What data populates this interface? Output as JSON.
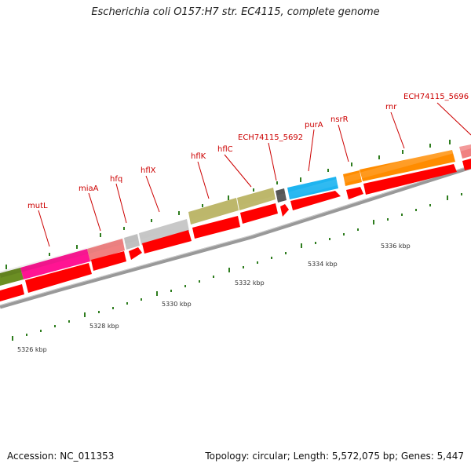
{
  "title": "Escherichia coli O157:H7 str. EC4115, complete genome",
  "footer": {
    "accession": "Accession: NC_011353",
    "summary": "Topology: circular; Length: 5,572,075 bp; Genes: 5,447"
  },
  "colors": {
    "gene_label": "#cc0000",
    "cds_arrow": "#ff0000",
    "backbone": "#999999",
    "tick": "#2e7d1e"
  },
  "scale_labels": [
    "5326 kbp",
    "5328 kbp",
    "5330 kbp",
    "5332 kbp",
    "5334 kbp",
    "5336 kbp"
  ],
  "genes": [
    "mutL",
    "miaA",
    "hfq",
    "hflX",
    "hflK",
    "hflC",
    "ECH74115_5692",
    "purA",
    "nsrR",
    "rnr",
    "ECH74115_5696"
  ]
}
